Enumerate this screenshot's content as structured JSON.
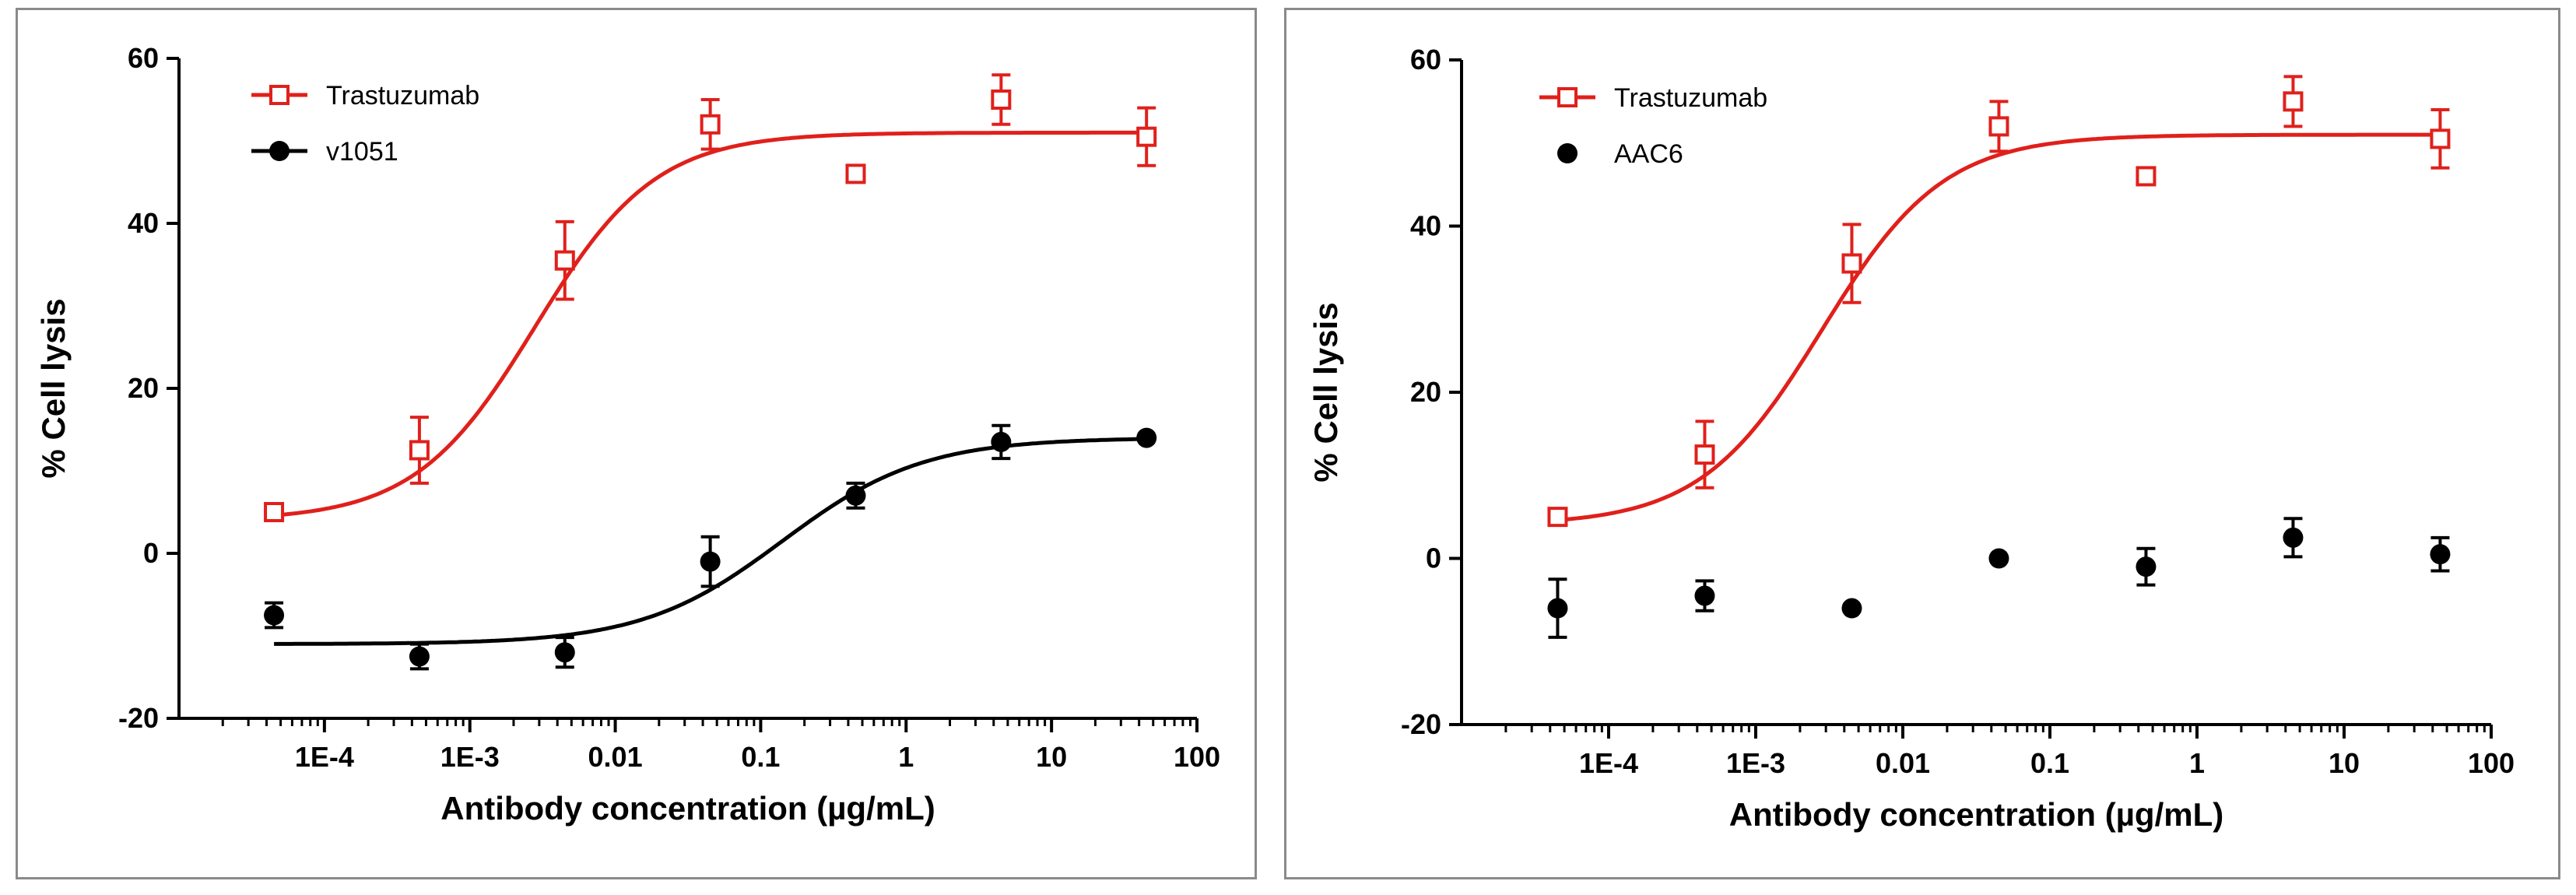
{
  "colors": {
    "trastuzumab": "#e0201b",
    "variant": "#000000",
    "axis": "#000000",
    "border": "#8a8a8a"
  },
  "chart_data": [
    {
      "type": "scatter",
      "xscale": "log",
      "xlabel": "Antibody concentration (µg/mL)",
      "ylabel": "% Cell lysis",
      "xlim": [
        1e-05,
        100
      ],
      "ylim": [
        -20,
        60
      ],
      "xticks": [
        {
          "value": 0.0001,
          "label": "1E-4"
        },
        {
          "value": 0.001,
          "label": "1E-3"
        },
        {
          "value": 0.01,
          "label": "0.01"
        },
        {
          "value": 0.1,
          "label": "0.1"
        },
        {
          "value": 1,
          "label": "1"
        },
        {
          "value": 10,
          "label": "10"
        },
        {
          "value": 100,
          "label": "100"
        }
      ],
      "yticks": [
        {
          "value": -20,
          "label": "-20"
        },
        {
          "value": 0,
          "label": "0"
        },
        {
          "value": 20,
          "label": "20"
        },
        {
          "value": 40,
          "label": "40"
        },
        {
          "value": 60,
          "label": "60"
        }
      ],
      "legend_position": "top-left",
      "series": [
        {
          "name": "Trastuzumab",
          "marker": "open-square",
          "color": "#e0201b",
          "x": [
            4.5e-05,
            0.00045,
            0.0045,
            0.045,
            0.45,
            4.5,
            45
          ],
          "y": [
            5,
            12.5,
            35.5,
            52,
            46,
            55,
            50.5
          ],
          "err": [
            0,
            4,
            4.7,
            3,
            0,
            3,
            3.5
          ],
          "fit": {
            "bottom": 4,
            "top": 51,
            "logEC50": -2.55,
            "hill": 1.05
          }
        },
        {
          "name": "v1051",
          "marker": "filled-circle",
          "color": "#000000",
          "x": [
            4.5e-05,
            0.00045,
            0.0045,
            0.045,
            0.45,
            4.5,
            45
          ],
          "y": [
            -7.5,
            -12.5,
            -12,
            -1,
            7,
            13.5,
            14
          ],
          "err": [
            1.5,
            1.5,
            1.8,
            3,
            1.5,
            2,
            0
          ],
          "fit": {
            "bottom": -11,
            "top": 14,
            "logEC50": -0.85,
            "hill": 0.9
          }
        }
      ]
    },
    {
      "type": "scatter",
      "xscale": "log",
      "xlabel": "Antibody concentration (µg/mL)",
      "ylabel": "% Cell lysis",
      "xlim": [
        1e-05,
        100
      ],
      "ylim": [
        -20,
        60
      ],
      "xticks": [
        {
          "value": 0.0001,
          "label": "1E-4"
        },
        {
          "value": 0.001,
          "label": "1E-3"
        },
        {
          "value": 0.01,
          "label": "0.01"
        },
        {
          "value": 0.1,
          "label": "0.1"
        },
        {
          "value": 1,
          "label": "1"
        },
        {
          "value": 10,
          "label": "10"
        },
        {
          "value": 100,
          "label": "100"
        }
      ],
      "yticks": [
        {
          "value": -20,
          "label": "-20"
        },
        {
          "value": 0,
          "label": "0"
        },
        {
          "value": 20,
          "label": "20"
        },
        {
          "value": 40,
          "label": "40"
        },
        {
          "value": 60,
          "label": "60"
        }
      ],
      "legend_position": "top-left",
      "series": [
        {
          "name": "Trastuzumab",
          "marker": "open-square",
          "color": "#e0201b",
          "x": [
            4.5e-05,
            0.00045,
            0.0045,
            0.045,
            0.45,
            4.5,
            45
          ],
          "y": [
            5,
            12.5,
            35.5,
            52,
            46,
            55,
            50.5
          ],
          "err": [
            0,
            4,
            4.7,
            3,
            0,
            3,
            3.5
          ],
          "fit": {
            "bottom": 4,
            "top": 51,
            "logEC50": -2.55,
            "hill": 1.05
          }
        },
        {
          "name": "AAC6",
          "marker": "filled-circle",
          "color": "#000000",
          "x": [
            4.5e-05,
            0.00045,
            0.0045,
            0.045,
            0.45,
            4.5,
            45
          ],
          "y": [
            -6,
            -4.5,
            -6,
            0,
            -1,
            2.5,
            0.5
          ],
          "err": [
            3.5,
            1.8,
            0,
            0,
            2.2,
            2.3,
            2
          ],
          "fit": null
        }
      ]
    }
  ]
}
